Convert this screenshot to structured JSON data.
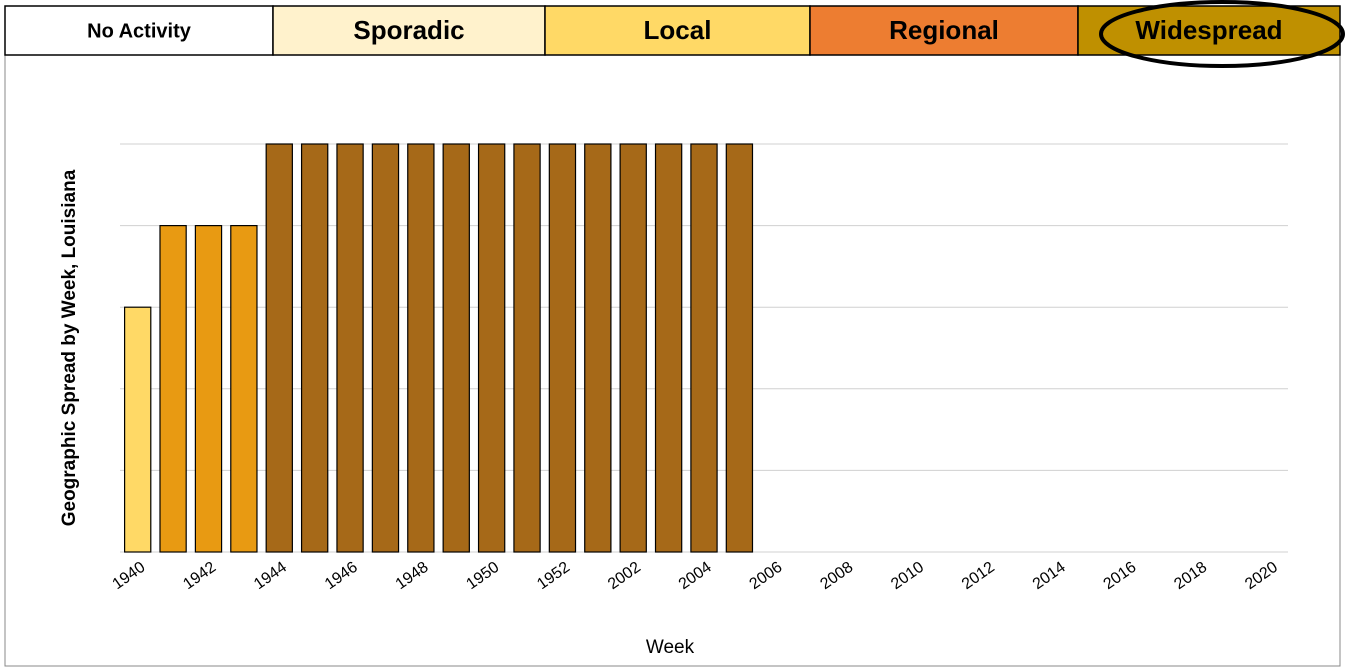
{
  "header": {
    "cells": [
      {
        "label": "No Activity",
        "color": "#ffffff"
      },
      {
        "label": "Sporadic",
        "color": "#fff2cc"
      },
      {
        "label": "Local",
        "color": "#ffd966"
      },
      {
        "label": "Regional",
        "color": "#ed7d31"
      },
      {
        "label": "Widespread",
        "color": "#bf9000"
      }
    ]
  },
  "chart_data": {
    "type": "bar",
    "x_label": "Week",
    "y_label": "Geographic Spread by Week, Louisiana",
    "categories": [
      1940,
      null,
      1942,
      null,
      1944,
      null,
      1946,
      null,
      1948,
      null,
      1950,
      null,
      1952,
      null,
      2002,
      null,
      2004,
      null,
      2006,
      null,
      2008,
      null,
      2010,
      null,
      2012,
      null,
      2014,
      null,
      2016,
      null,
      2018,
      null,
      2020
    ],
    "values": [
      3,
      4,
      4,
      4,
      5,
      5,
      5,
      5,
      5,
      5,
      5,
      5,
      5,
      5,
      5,
      5,
      5,
      5,
      null,
      null,
      null,
      null,
      null,
      null,
      null,
      null,
      null,
      null,
      null,
      null,
      null,
      null,
      null
    ],
    "colors": [
      "#ffd966",
      "#e89a12",
      "#e89a12",
      "#e89a12",
      "#a66918",
      "#a66918",
      "#a66918",
      "#a66918",
      "#a66918",
      "#a66918",
      "#a66918",
      "#a66918",
      "#a66918",
      "#a66918",
      "#a66918",
      "#a66918",
      "#a66918",
      "#a66918",
      null,
      null,
      null,
      null,
      null,
      null,
      null,
      null,
      null,
      null,
      null,
      null,
      null,
      null,
      null
    ],
    "ylim": [
      0,
      5
    ],
    "yticks": [
      0,
      1,
      2,
      3,
      4,
      5
    ],
    "grid": true
  }
}
